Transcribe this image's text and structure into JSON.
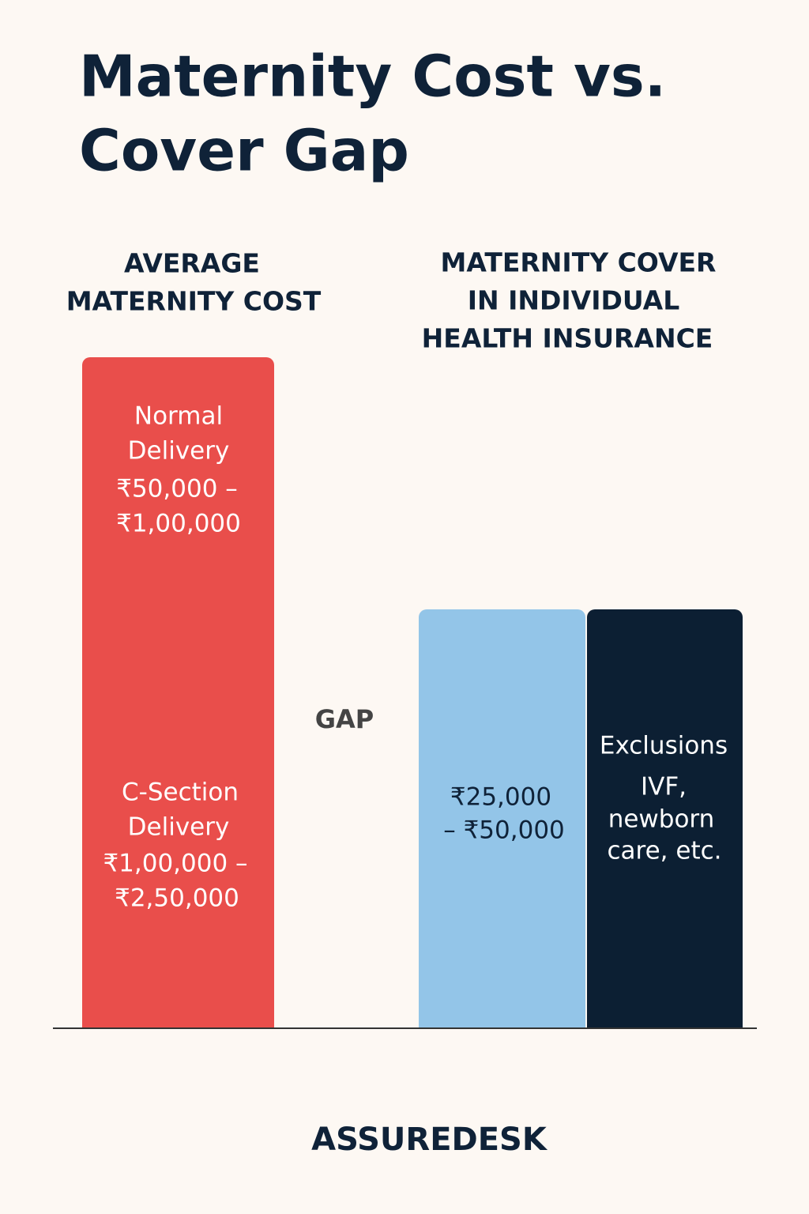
{
  "header": {
    "title_lines": [
      "Maternity Cost vs.",
      "Cover Gap"
    ]
  },
  "left": {
    "heading_lines": [
      "AVERAGE",
      "MATERNITY COST"
    ],
    "normal": {
      "label_lines": [
        "Normal",
        "Delivery"
      ],
      "range_lines": [
        "₹50,000 –",
        "₹1,00,000"
      ]
    },
    "csection": {
      "label_lines": [
        "C-Section",
        "Delivery"
      ],
      "range_lines": [
        "₹1,00,000 –",
        "₹2,50,000"
      ]
    }
  },
  "gap": "GAP",
  "right": {
    "heading_lines": [
      "MATERNITY COVER",
      "IN INDIVIDUAL",
      "HEALTH INSURANCE"
    ],
    "cover_lines": [
      "₹25,000",
      "– ₹50,000"
    ],
    "exclusions": {
      "title": "Exclusions",
      "lines": [
        "IVF,",
        "newborn",
        "care, etc."
      ]
    }
  },
  "footer": {
    "brand": "ASSUREDESK"
  }
}
